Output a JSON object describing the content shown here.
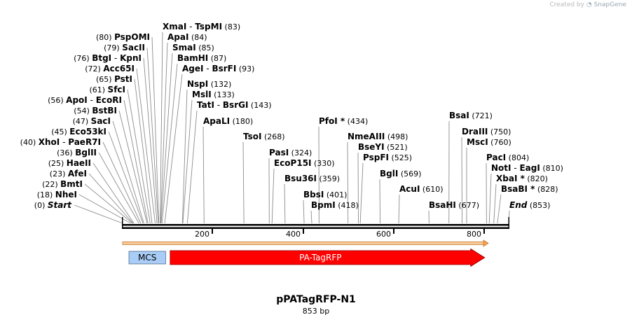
{
  "credit": {
    "prefix": "Created by",
    "brand": "SnapGene"
  },
  "plasmid": {
    "name": "pPATagRFP-N1",
    "length_label": "853 bp",
    "length": 853
  },
  "colors": {
    "backbone": "#000000",
    "mcs": "#a9cdf6",
    "pa_tagrfp": "#ff0000",
    "orf_line": "#f0a35a",
    "leader": "#8c8c8c"
  },
  "ruler_ticks": [
    "200",
    "400",
    "600",
    "800"
  ],
  "features": [
    {
      "label": "MCS",
      "start": 14,
      "end": 95,
      "type": "box"
    },
    {
      "label": "PA-TagRFP",
      "start": 105,
      "end": 800,
      "type": "arrow"
    }
  ],
  "sites": [
    {
      "name": "Start",
      "pos": "0",
      "italic": true
    },
    {
      "name": "NheI",
      "pos": "18"
    },
    {
      "name": "BmtI",
      "pos": "22"
    },
    {
      "name": "AfeI",
      "pos": "23"
    },
    {
      "name": "HaeII",
      "pos": "25"
    },
    {
      "name": "BglII",
      "pos": "36"
    },
    {
      "name": "XhoI",
      "pos": "40",
      "alias": "PaeR7I"
    },
    {
      "name": "Eco53kI",
      "pos": "45"
    },
    {
      "name": "SacI",
      "pos": "47"
    },
    {
      "name": "BstBI",
      "pos": "54"
    },
    {
      "name": "ApoI",
      "pos": "56",
      "alias": "EcoRI"
    },
    {
      "name": "SfcI",
      "pos": "61"
    },
    {
      "name": "PstI",
      "pos": "65"
    },
    {
      "name": "Acc65I",
      "pos": "72"
    },
    {
      "name": "BtgI",
      "pos": "76",
      "alias": "KpnI"
    },
    {
      "name": "SacII",
      "pos": "79"
    },
    {
      "name": "PspOMI",
      "pos": "80"
    },
    {
      "name": "XmaI",
      "pos": "83",
      "alias": "TspMI"
    },
    {
      "name": "ApaI",
      "pos": "84"
    },
    {
      "name": "SmaI",
      "pos": "85"
    },
    {
      "name": "BamHI",
      "pos": "87"
    },
    {
      "name": "AgeI",
      "pos": "93",
      "alias": "BsrFI"
    },
    {
      "name": "NspI",
      "pos": "132"
    },
    {
      "name": "MslI",
      "pos": "133"
    },
    {
      "name": "TatI",
      "pos": "143",
      "alias": "BsrGI"
    },
    {
      "name": "ApaLI",
      "pos": "180"
    },
    {
      "name": "TsoI",
      "pos": "268"
    },
    {
      "name": "PasI",
      "pos": "324"
    },
    {
      "name": "EcoP15I",
      "pos": "330"
    },
    {
      "name": "Bsu36I",
      "pos": "359"
    },
    {
      "name": "BbsI",
      "pos": "401"
    },
    {
      "name": "BpmI",
      "pos": "418"
    },
    {
      "name": "PfoI",
      "pos": "434",
      "star": true
    },
    {
      "name": "NmeAIII",
      "pos": "498"
    },
    {
      "name": "BseYI",
      "pos": "521"
    },
    {
      "name": "PspFI",
      "pos": "525"
    },
    {
      "name": "BglI",
      "pos": "569"
    },
    {
      "name": "AcuI",
      "pos": "610"
    },
    {
      "name": "BsaHI",
      "pos": "677"
    },
    {
      "name": "BsaI",
      "pos": "721"
    },
    {
      "name": "DraIII",
      "pos": "750"
    },
    {
      "name": "MscI",
      "pos": "760"
    },
    {
      "name": "PacI",
      "pos": "804"
    },
    {
      "name": "NotI",
      "pos": "810",
      "alias": "EagI"
    },
    {
      "name": "XbaI",
      "pos": "820",
      "star": true
    },
    {
      "name": "BsaBI",
      "pos": "828",
      "star": true
    },
    {
      "name": "End",
      "pos": "853",
      "italic": true
    }
  ]
}
